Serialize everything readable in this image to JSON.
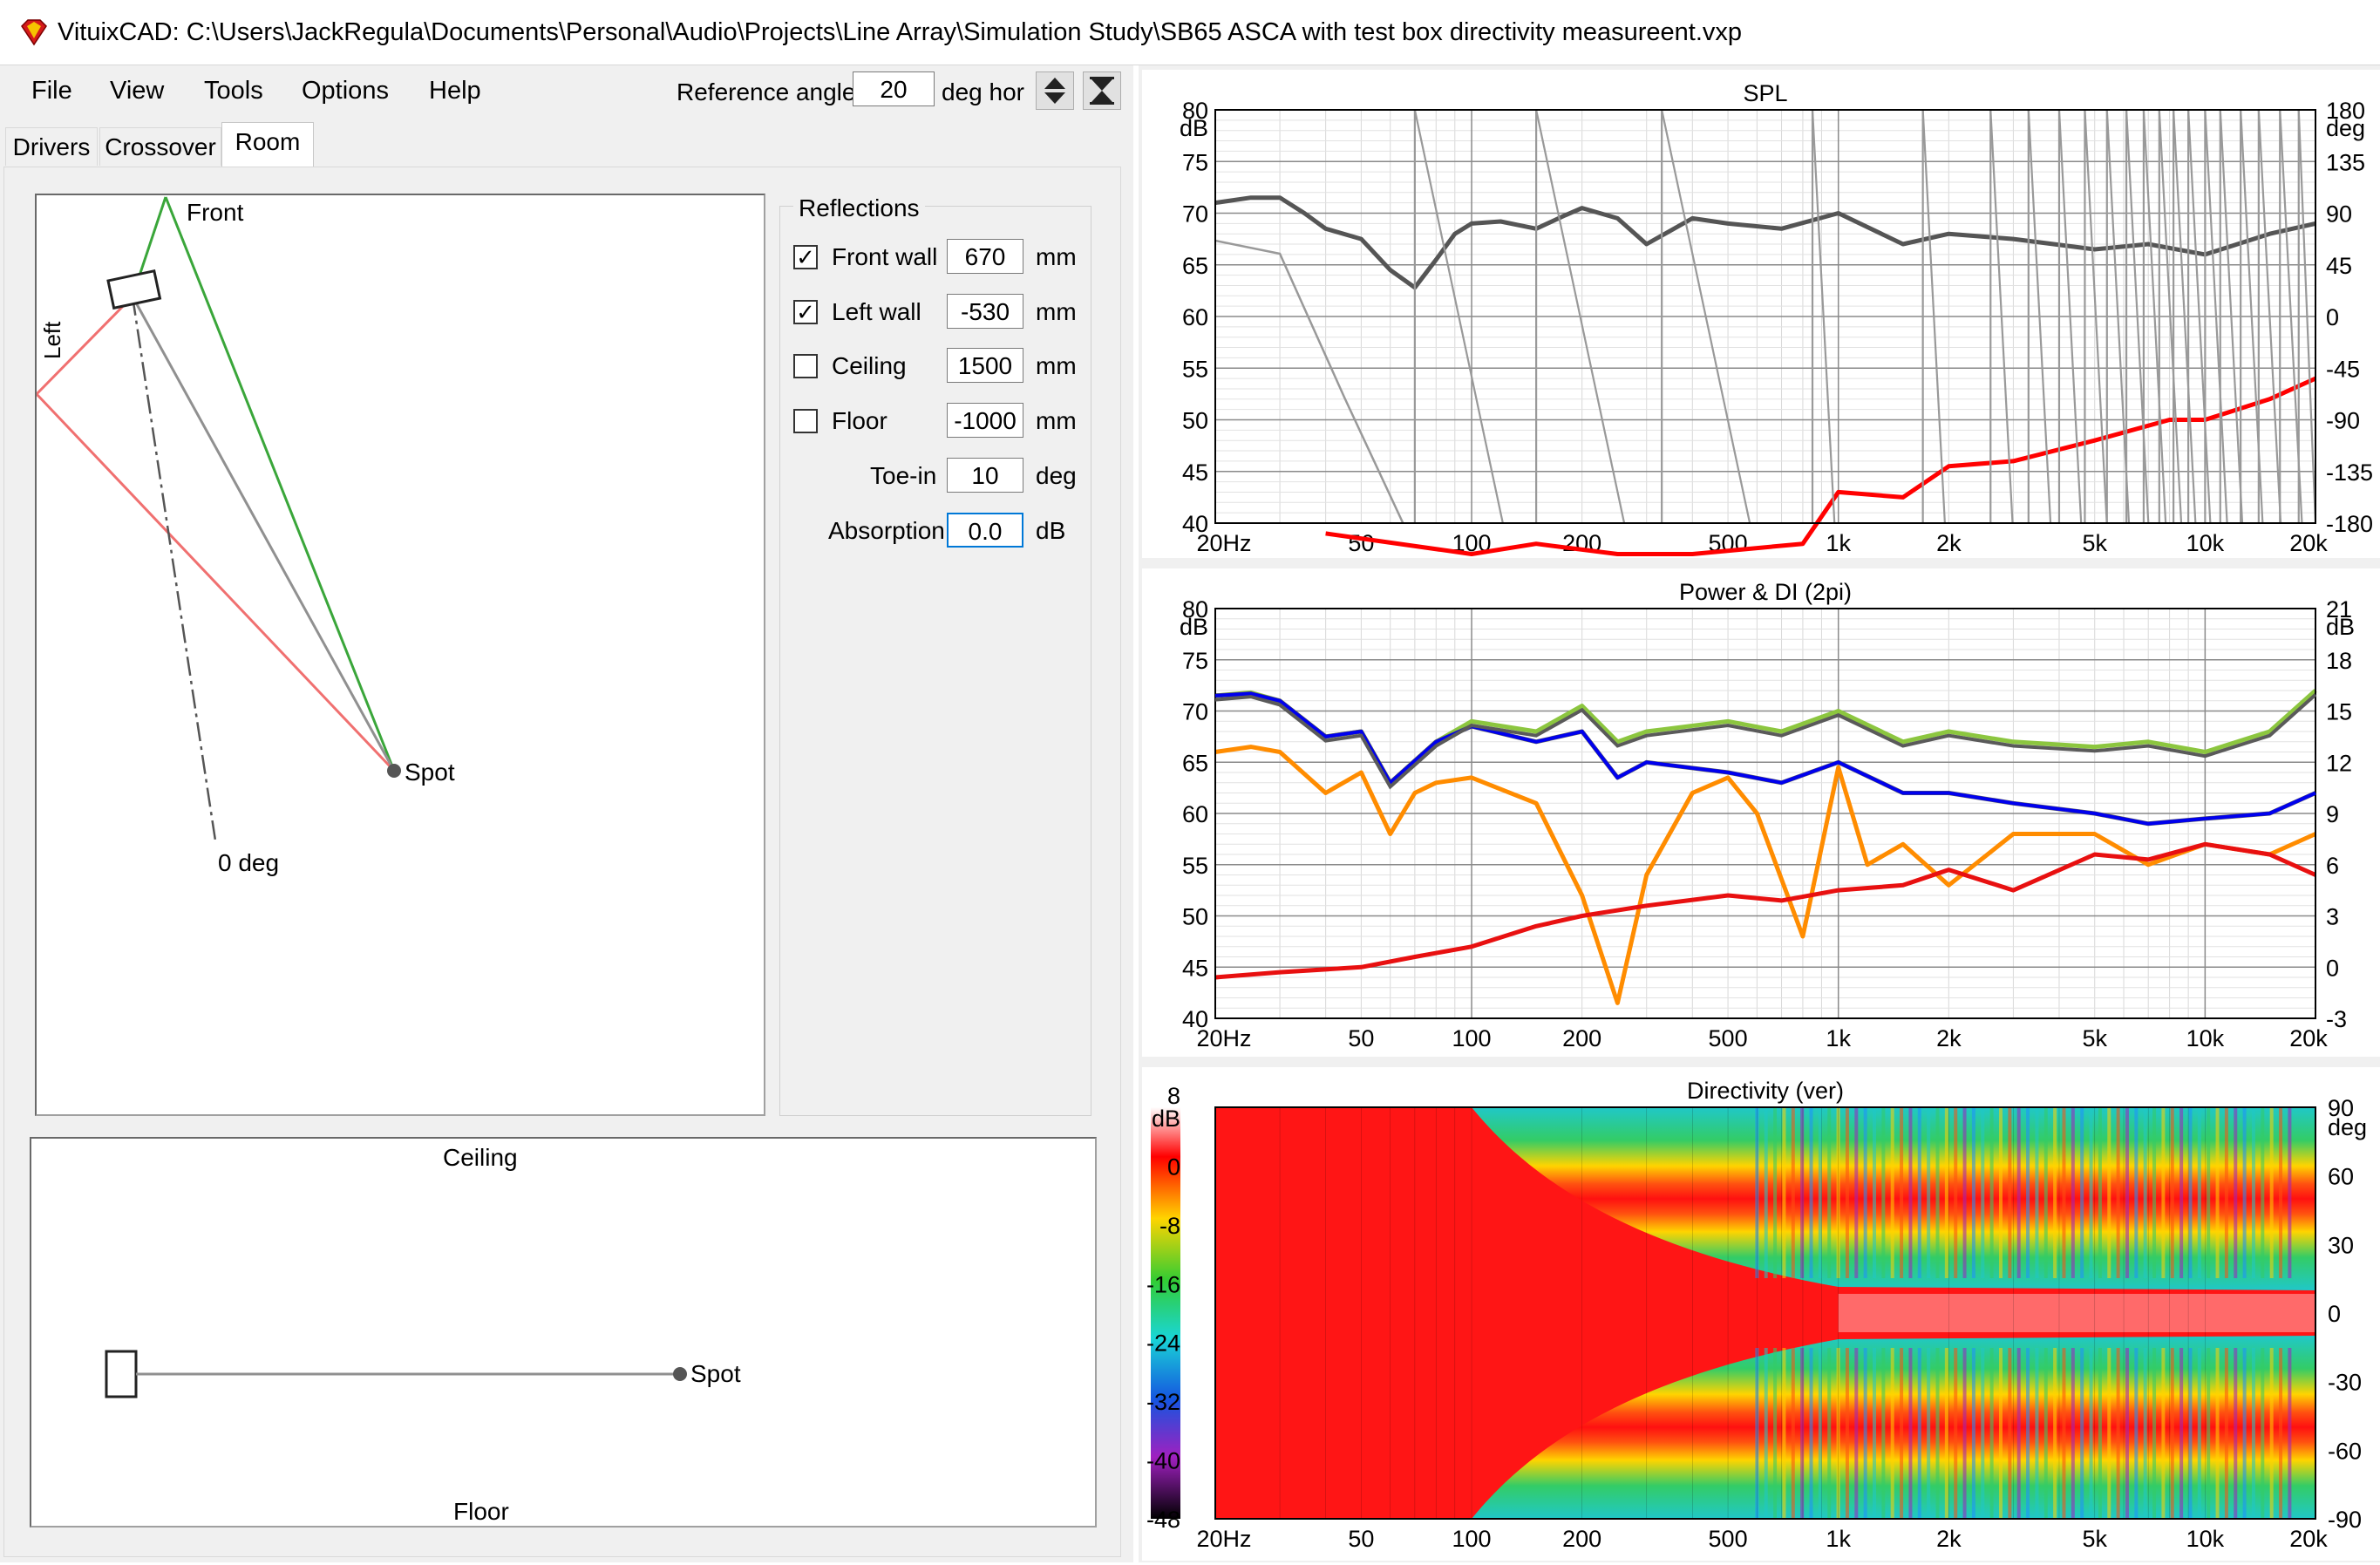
{
  "window": {
    "title": "VituixCAD: C:\\Users\\JackRegula\\Documents\\Personal\\Audio\\Projects\\Line Array\\Simulation Study\\SB65 ASCA with test box directivity measureent.vxp",
    "icon": "vituixcad-diamond-icon"
  },
  "menu": {
    "items": [
      {
        "label": "File"
      },
      {
        "label": "View"
      },
      {
        "label": "Tools"
      },
      {
        "label": "Options"
      },
      {
        "label": "Help"
      }
    ]
  },
  "reference": {
    "label": "Reference angle",
    "value": "20",
    "unit": "deg hor",
    "icons": [
      "up-down-arrows-icon",
      "hourglass-icon"
    ]
  },
  "tabs": [
    {
      "label": "Drivers",
      "active": false
    },
    {
      "label": "Crossover",
      "active": false
    },
    {
      "label": "Room",
      "active": true
    }
  ],
  "room": {
    "front_label": "Front",
    "left_label": "Left",
    "spot_label": "Spot",
    "zero_deg_label": "0 deg",
    "ceiling_label": "Ceiling",
    "floor_label": "Floor"
  },
  "reflections": {
    "title": "Reflections",
    "rows": [
      {
        "label": "Front wall",
        "checked": true,
        "value": "670",
        "unit": "mm"
      },
      {
        "label": "Left wall",
        "checked": true,
        "value": "-530",
        "unit": "mm"
      },
      {
        "label": "Ceiling",
        "checked": false,
        "value": "1500",
        "unit": "mm"
      },
      {
        "label": "Floor",
        "checked": false,
        "value": "-1000",
        "unit": "mm"
      }
    ],
    "toe_in": {
      "label": "Toe-in",
      "value": "10",
      "unit": "deg"
    },
    "absorption": {
      "label": "Absorption",
      "value": "0.0",
      "unit": "dB"
    }
  },
  "colors": {
    "spl_magnitude": "#555555",
    "spl_phase": "#999999",
    "spl_red": "#ff0000",
    "power_grey": "#5a5a5a",
    "power_green": "#8cc63f",
    "power_blue": "#0000ee",
    "power_orange": "#ff8c00",
    "power_red": "#e81010",
    "front_line": "#3aa63a",
    "left_line": "#f07070"
  },
  "chart_data": [
    {
      "type": "line",
      "title": "SPL",
      "x_ticks": [
        "20Hz",
        "50",
        "100",
        "200",
        "500",
        "1k",
        "2k",
        "5k",
        "10k",
        "20k"
      ],
      "x_tick_values": [
        20,
        50,
        100,
        200,
        500,
        1000,
        2000,
        5000,
        10000,
        20000
      ],
      "xscale": "log",
      "xlim": [
        20,
        20000
      ],
      "y_left_unit": "dB",
      "y_left_ticks": [
        "80",
        "75",
        "70",
        "65",
        "60",
        "55",
        "50",
        "45",
        "40"
      ],
      "ylim": [
        40,
        80
      ],
      "y_right_unit": "deg",
      "y_right_ticks": [
        "180",
        "135",
        "90",
        "45",
        "0",
        "-45",
        "-90",
        "-135",
        "-180"
      ],
      "y_right_lim": [
        -180,
        180
      ],
      "grid": true,
      "series": [
        {
          "x": [
            20,
            25,
            30,
            35,
            40,
            50,
            60,
            70,
            80,
            90,
            100,
            120,
            150,
            180,
            200,
            250,
            300,
            400,
            500,
            700,
            1000,
            1500,
            2000,
            3000,
            5000,
            7000,
            10000,
            15000,
            20000
          ],
          "y": [
            71,
            71.5,
            71.5,
            70,
            68.5,
            67.5,
            64.5,
            62.8,
            65.5,
            68,
            69,
            69.2,
            68.5,
            69.8,
            70.5,
            69.5,
            67,
            69.5,
            69,
            68.5,
            70,
            67,
            68,
            67.5,
            66.5,
            67,
            66,
            68,
            69
          ]
        },
        {
          "x": [
            40,
            100,
            150,
            250,
            400,
            800,
            1000,
            1500,
            2000,
            3000,
            5000,
            8000,
            10000,
            15000,
            20000
          ],
          "y": [
            39,
            37,
            38,
            36,
            37,
            38,
            43,
            42.5,
            45.5,
            46,
            48,
            50,
            50,
            52,
            54
          ]
        }
      ]
    },
    {
      "type": "line",
      "title": "Power & DI (2pi)",
      "x_ticks": [
        "20Hz",
        "50",
        "100",
        "200",
        "500",
        "1k",
        "2k",
        "5k",
        "10k",
        "20k"
      ],
      "x_tick_values": [
        20,
        50,
        100,
        200,
        500,
        1000,
        2000,
        5000,
        10000,
        20000
      ],
      "xscale": "log",
      "xlim": [
        20,
        20000
      ],
      "y_left_unit": "dB",
      "y_left_ticks": [
        "80",
        "75",
        "70",
        "65",
        "60",
        "55",
        "50",
        "45",
        "40"
      ],
      "ylim": [
        40,
        80
      ],
      "y_right_unit": "dB",
      "y_right_ticks": [
        "21",
        "18",
        "15",
        "12",
        "9",
        "6",
        "3",
        "0",
        "-3"
      ],
      "y_right_lim": [
        -3,
        21
      ],
      "grid": true,
      "series": [
        {
          "x": [
            20,
            25,
            30,
            40,
            50,
            60,
            80,
            100,
            150,
            200,
            250,
            300,
            500,
            700,
            1000,
            1500,
            2000,
            3000,
            5000,
            7000,
            10000,
            15000,
            20000
          ],
          "y": [
            71.5,
            71.8,
            71,
            67.5,
            68,
            63,
            67,
            69,
            68,
            70.5,
            67,
            68,
            69,
            68,
            70,
            67,
            68,
            67,
            66.5,
            67,
            66,
            68,
            72
          ]
        },
        {
          "x": [
            20,
            25,
            30,
            40,
            50,
            60,
            80,
            100,
            150,
            200,
            250,
            300,
            500,
            700,
            1000,
            1500,
            2000,
            3000,
            5000,
            7000,
            10000,
            15000,
            20000
          ],
          "y": [
            71.5,
            71.7,
            71,
            67.5,
            68,
            63,
            67,
            68.5,
            67,
            68,
            63.5,
            65,
            64,
            63,
            65,
            62,
            62,
            61,
            60,
            59,
            59.5,
            60,
            62
          ]
        },
        {
          "x": [
            20,
            25,
            30,
            40,
            50,
            60,
            70,
            80,
            100,
            150,
            200,
            250,
            300,
            400,
            500,
            600,
            800,
            1000,
            1200,
            1500,
            2000,
            3000,
            5000,
            7000,
            10000,
            15000,
            20000
          ],
          "y": [
            66,
            66.5,
            66,
            62,
            64,
            58,
            62,
            63,
            63.5,
            61,
            52,
            41.5,
            54,
            62,
            63.5,
            60,
            48,
            64.5,
            55,
            57,
            53,
            58,
            58,
            55,
            57,
            56,
            58
          ]
        },
        {
          "x": [
            20,
            30,
            50,
            70,
            100,
            150,
            200,
            300,
            500,
            700,
            1000,
            1500,
            2000,
            3000,
            5000,
            7000,
            10000,
            15000,
            20000
          ],
          "y": [
            44,
            44.5,
            45,
            46,
            47,
            49,
            50,
            51,
            52,
            51.5,
            52.5,
            53,
            54.5,
            52.5,
            56,
            55.5,
            57,
            56,
            54
          ]
        }
      ]
    },
    {
      "type": "heatmap",
      "title": "Directivity (ver)",
      "x_ticks": [
        "20Hz",
        "50",
        "100",
        "200",
        "500",
        "1k",
        "2k",
        "5k",
        "10k",
        "20k"
      ],
      "xscale": "log",
      "xlim": [
        20,
        20000
      ],
      "y_right_unit": "deg",
      "y_right_ticks": [
        "90",
        "60",
        "30",
        "0",
        "-30",
        "-60",
        "-90"
      ],
      "ylim": [
        -90,
        90
      ],
      "color_scale_unit": "dB",
      "color_scale_ticks": [
        "8",
        "0",
        "-8",
        "-16",
        "-24",
        "-32",
        "-40",
        "-48"
      ],
      "color_scale_lim": [
        -48,
        8
      ]
    }
  ]
}
